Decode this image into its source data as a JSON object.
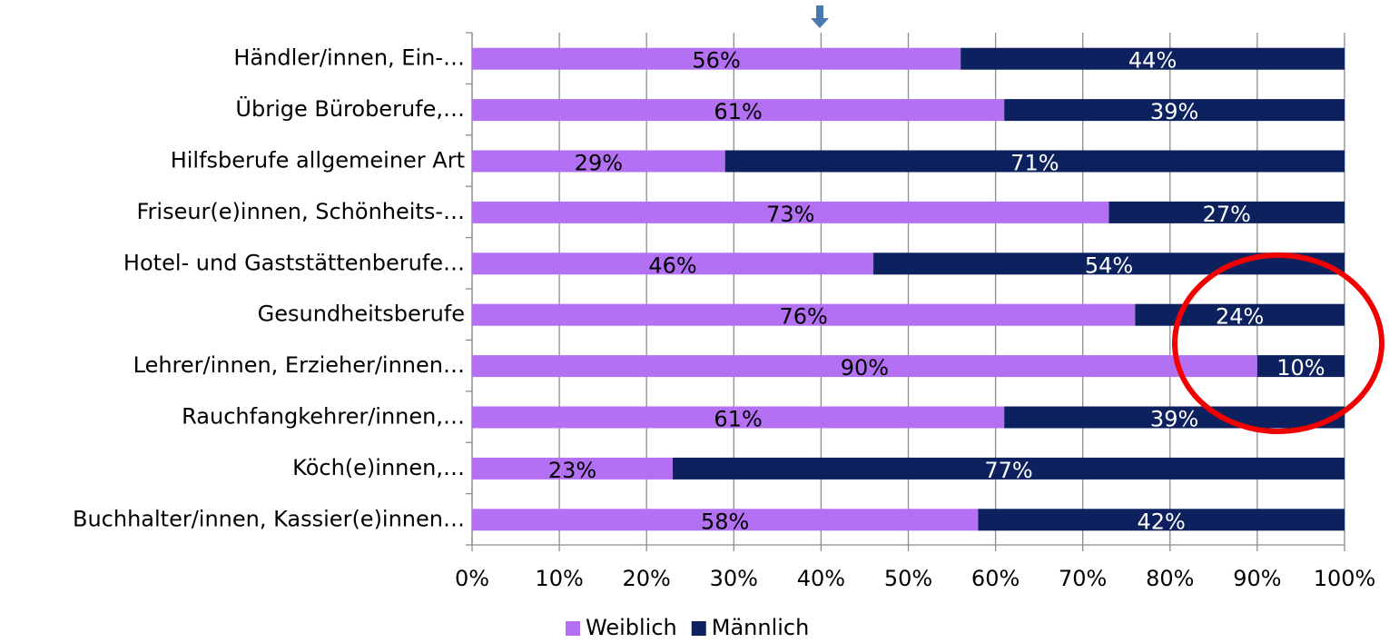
{
  "chart_data": {
    "type": "stacked_barh",
    "categories": [
      "Händler/innen, Ein-…",
      "Übrige Büroberufe,…",
      "Hilfsberufe allgemeiner Art",
      "Friseur(e)innen, Schönheits-…",
      "Hotel- und Gaststättenberufe…",
      "Gesundheitsberufe",
      "Lehrer/innen, Erzieher/innen…",
      "Rauchfangkehrer/innen,…",
      "Köch(e)innen,…",
      "Buchhalter/innen, Kassier(e)innen…"
    ],
    "series": [
      {
        "name": "Weiblich",
        "color": "#b370f3",
        "values": [
          56,
          61,
          29,
          73,
          46,
          76,
          90,
          61,
          23,
          58
        ],
        "value_labels": [
          "56%",
          "61%",
          "29%",
          "73%",
          "46%",
          "76%",
          "90%",
          "61%",
          "23%",
          "58%"
        ]
      },
      {
        "name": "Männlich",
        "color": "#0c215e",
        "values": [
          44,
          39,
          71,
          27,
          54,
          24,
          10,
          39,
          77,
          42
        ],
        "value_labels": [
          "44%",
          "39%",
          "71%",
          "27%",
          "54%",
          "24%",
          "10%",
          "39%",
          "77%",
          "42%"
        ]
      }
    ],
    "xlim": [
      0,
      100
    ],
    "xticks": [
      {
        "value": 0,
        "label": "0%"
      },
      {
        "value": 10,
        "label": "10%"
      },
      {
        "value": 20,
        "label": "20%"
      },
      {
        "value": 30,
        "label": "30%"
      },
      {
        "value": 40,
        "label": "40%"
      },
      {
        "value": 50,
        "label": "50%"
      },
      {
        "value": 60,
        "label": "60%"
      },
      {
        "value": 70,
        "label": "70%"
      },
      {
        "value": 80,
        "label": "80%"
      },
      {
        "value": 90,
        "label": "90%"
      },
      {
        "value": 100,
        "label": "100%"
      }
    ],
    "grid": true,
    "legend": "bottom"
  }
}
